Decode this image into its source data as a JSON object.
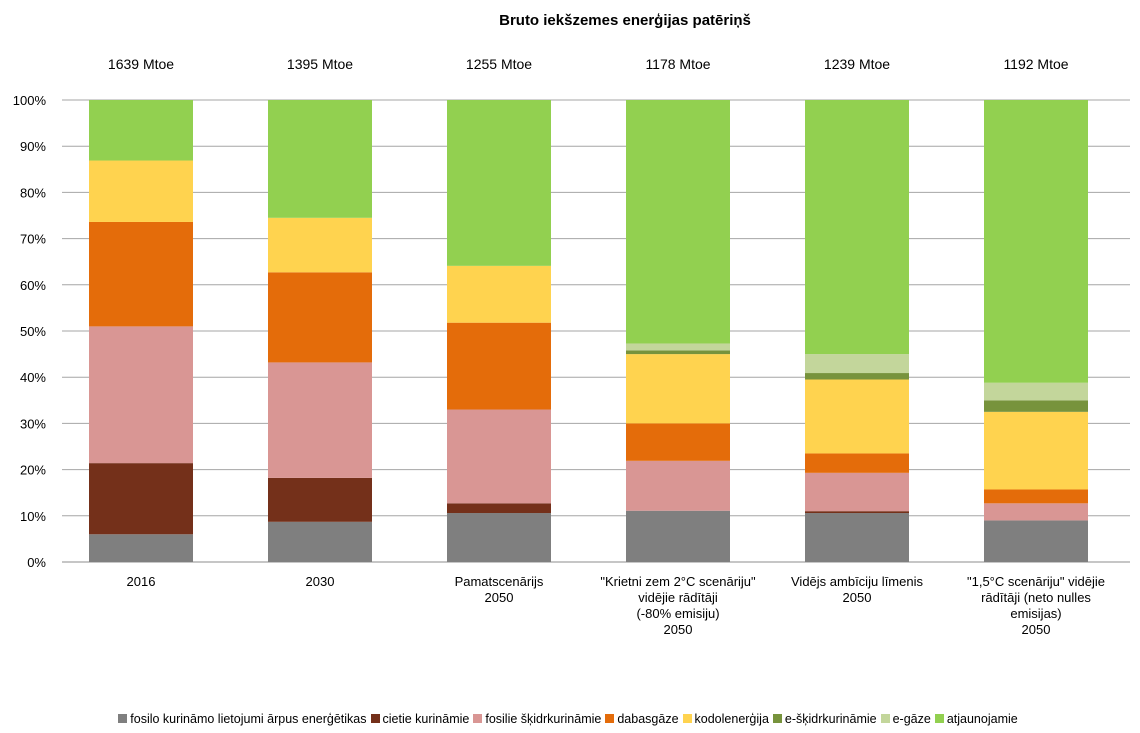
{
  "chart_data": {
    "type": "bar",
    "stacked": "percent",
    "title": "Bruto  iekšzemes enerģijas patēriņš",
    "annotations": [
      "1639 Mtoe",
      "1395 Mtoe",
      "1255 Mtoe",
      "1178 Mtoe",
      "1239 Mtoe",
      "1192 Mtoe"
    ],
    "categories": [
      [
        "2016"
      ],
      [
        "2030"
      ],
      [
        "Pamatscenārijs",
        "2050"
      ],
      [
        "\"Krietni zem 2°C scenāriju\"",
        "vidējie rādītāji",
        "(-80% emisiju)",
        "2050"
      ],
      [
        "Vidējs ambīciju līmenis",
        "2050"
      ],
      [
        "\"1,5°C scenāriju\" vidējie",
        "rādītāji (neto nulles",
        "emisijas)",
        "2050"
      ]
    ],
    "y_ticks": [
      "0%",
      "10%",
      "20%",
      "30%",
      "40%",
      "50%",
      "60%",
      "70%",
      "80%",
      "90%",
      "100%"
    ],
    "ylim": [
      0,
      100
    ],
    "grid": true,
    "legend_position": "bottom",
    "series": [
      {
        "name": "fosilo kurināmo lietojumi ārpus enerģētikas",
        "color": "#7f7f7f",
        "values": [
          6,
          8.7,
          10.6,
          11.1,
          10.6,
          9
        ]
      },
      {
        "name": "cietie kurināmie",
        "color": "#74301a",
        "values": [
          15.4,
          9.5,
          2.1,
          0,
          0.4,
          0
        ]
      },
      {
        "name": "fosilie šķidrkurināmie",
        "color": "#d99694",
        "values": [
          29.6,
          25,
          20.3,
          10.8,
          8.3,
          3.7
        ]
      },
      {
        "name": "dabasgāze",
        "color": "#e46c0a",
        "values": [
          22.6,
          19.5,
          18.8,
          8.1,
          4.2,
          3
        ]
      },
      {
        "name": "kodolenerģija",
        "color": "#ffd34f",
        "values": [
          13.3,
          11.8,
          12.3,
          15,
          16,
          16.8
        ]
      },
      {
        "name": "e-šķidrkurināmie",
        "color": "#77933c",
        "values": [
          0,
          0,
          0,
          0.8,
          1.4,
          2.5
        ]
      },
      {
        "name": "e-gāze",
        "color": "#c3d69b",
        "values": [
          0,
          0,
          0,
          1.5,
          4.1,
          3.8
        ]
      },
      {
        "name": "atjaunojamie",
        "color": "#92d050",
        "values": [
          13.1,
          25.5,
          35.9,
          52.7,
          55,
          61.2
        ]
      }
    ]
  }
}
